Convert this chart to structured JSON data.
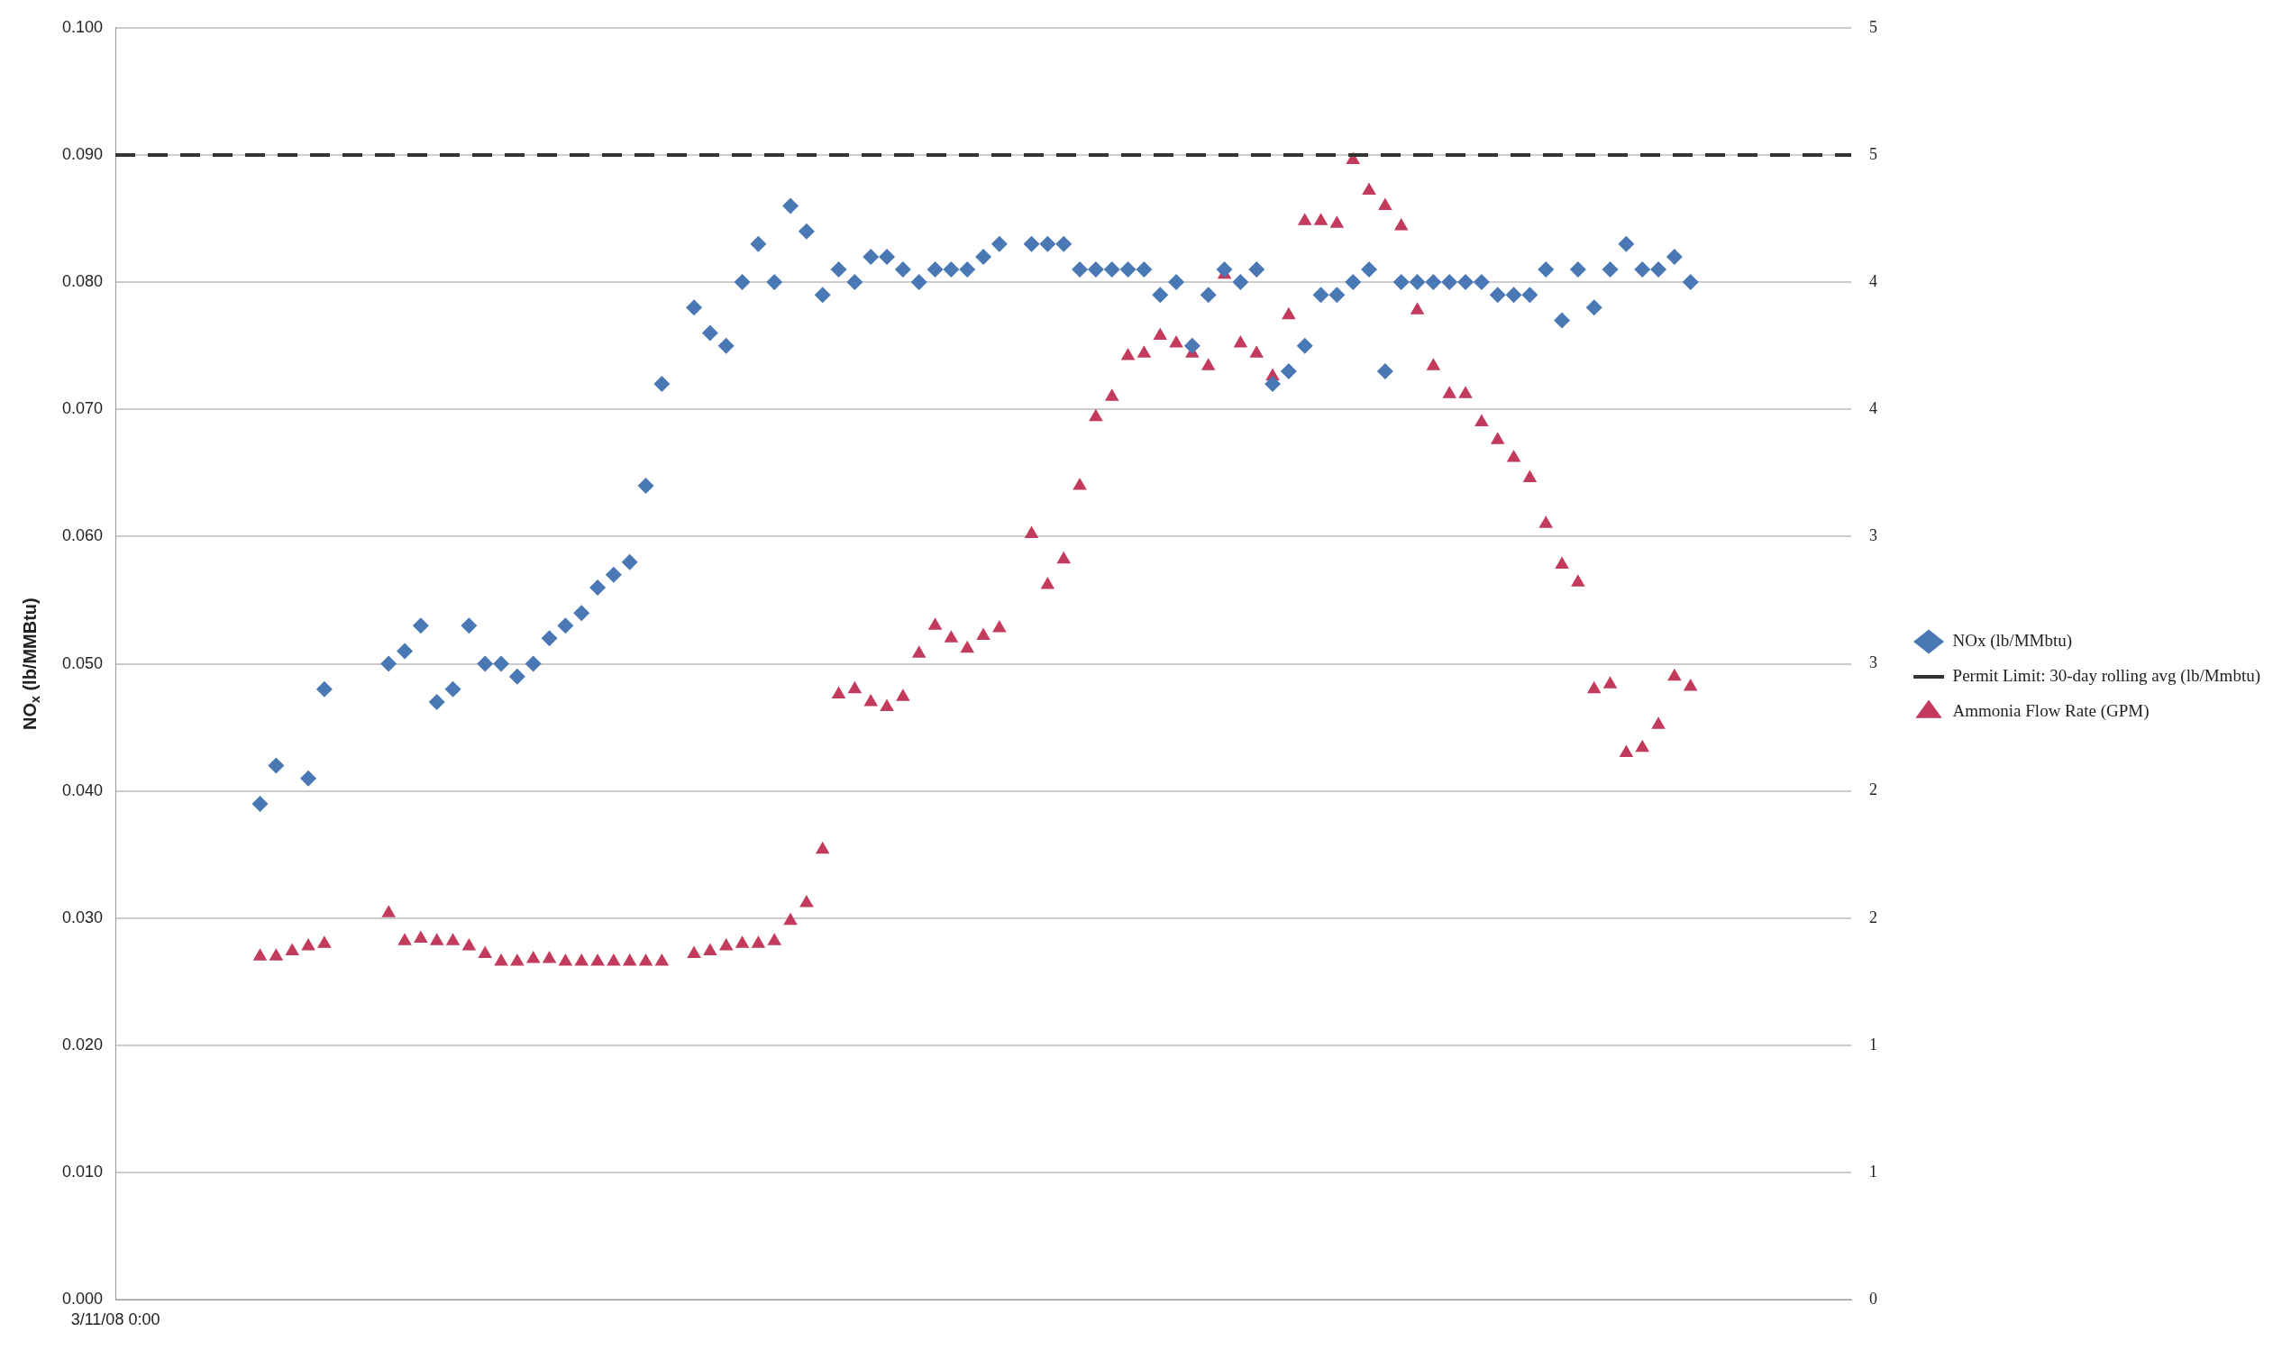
{
  "chart_data": {
    "type": "scatter",
    "ylabel": "NO$_{x}$ (lb/MMBtu)",
    "categories": [
      "3/11/08 0:00",
      null,
      null,
      null,
      null,
      null,
      null,
      null,
      null,
      null,
      null,
      null,
      null,
      null,
      null,
      null,
      null,
      null,
      null,
      null,
      null,
      null,
      null,
      null,
      null,
      null,
      null,
      null,
      null,
      null,
      null,
      null,
      null,
      null,
      null,
      null,
      null,
      null,
      null,
      null,
      null,
      null,
      null,
      null,
      null,
      null,
      null,
      null,
      null,
      null,
      null,
      null,
      null,
      null,
      null,
      null,
      null,
      null,
      null,
      null,
      null,
      null,
      null,
      null,
      null,
      null,
      null,
      null,
      null,
      null,
      null,
      null,
      null,
      null,
      null,
      null,
      null,
      null,
      null,
      null,
      null,
      null,
      null,
      null,
      null,
      null,
      null,
      null,
      null,
      null,
      null,
      null,
      null,
      null,
      null,
      null,
      null,
      null,
      null,
      null,
      null,
      null,
      null,
      null,
      null,
      null,
      null,
      null,
      null
    ],
    "series": [
      {
        "name": "NOx (lb/MMbtu)",
        "marker": "diamond",
        "color": "#4a78b4",
        "values": [
          null,
          null,
          null,
          null,
          null,
          null,
          null,
          null,
          null,
          0.039,
          0.042,
          null,
          0.041,
          0.048,
          null,
          null,
          null,
          0.05,
          0.051,
          0.053,
          0.047,
          0.048,
          0.053,
          0.05,
          0.05,
          0.049,
          0.05,
          0.052,
          0.053,
          0.054,
          0.056,
          0.057,
          0.058,
          0.064,
          0.072,
          null,
          0.078,
          0.076,
          0.075,
          0.08,
          0.083,
          0.08,
          0.086,
          0.084,
          0.079,
          0.081,
          0.08,
          0.082,
          0.082,
          0.081,
          0.08,
          0.081,
          0.081,
          0.081,
          0.082,
          0.083,
          null,
          0.083,
          0.083,
          0.083,
          0.081,
          0.081,
          0.081,
          0.081,
          0.081,
          0.079,
          0.08,
          0.075,
          0.079,
          0.081,
          0.08,
          0.081,
          0.072,
          0.073,
          0.075,
          0.079,
          0.079,
          0.08,
          0.081,
          0.073,
          0.08,
          0.08,
          0.08,
          0.08,
          0.08,
          0.08,
          0.079,
          0.079,
          0.079,
          0.081,
          0.077,
          0.081,
          0.078,
          0.081,
          0.083,
          0.081,
          0.081,
          0.082,
          0.08,
          null,
          null,
          null,
          null,
          null,
          null,
          null,
          null,
          null,
          null
        ]
      },
      {
        "name": "Permit Limit: 30-day rolling avg (lb/Mmbtu)",
        "type": "line",
        "marker": "none",
        "line_style": "dashed",
        "color": "#333333",
        "values": [
          0.09,
          0.09,
          0.09,
          0.09,
          0.09,
          0.09,
          0.09,
          0.09,
          0.09,
          0.09,
          0.09,
          0.09,
          0.09,
          0.09,
          0.09,
          0.09,
          0.09,
          0.09,
          0.09,
          0.09,
          0.09,
          0.09,
          0.09,
          0.09,
          0.09,
          0.09,
          0.09,
          0.09,
          0.09,
          0.09,
          0.09,
          0.09,
          0.09,
          0.09,
          0.09,
          0.09,
          0.09,
          0.09,
          0.09,
          0.09,
          0.09,
          0.09,
          0.09,
          0.09,
          0.09,
          0.09,
          0.09,
          0.09,
          0.09,
          0.09,
          0.09,
          0.09,
          0.09,
          0.09,
          0.09,
          0.09,
          0.09,
          0.09,
          0.09,
          0.09,
          0.09,
          0.09,
          0.09,
          0.09,
          0.09,
          0.09,
          0.09,
          0.09,
          0.09,
          0.09,
          0.09,
          0.09,
          0.09,
          0.09,
          0.09,
          0.09,
          0.09,
          0.09,
          0.09,
          0.09,
          0.09,
          0.09,
          0.09,
          0.09,
          0.09,
          0.09,
          0.09,
          0.09,
          0.09,
          0.09,
          0.09,
          0.09,
          0.09,
          0.09,
          0.09,
          0.09,
          0.09,
          0.09,
          0.09,
          0.09,
          0.09,
          0.09,
          0.09,
          0.09,
          0.09,
          0.09,
          0.09,
          0.09,
          0.09
        ]
      },
      {
        "name": "Ammonia Flow Rate (GPM)",
        "marker": "triangle",
        "axis": "y2",
        "color": "#c23a5c",
        "values": [
          null,
          null,
          null,
          null,
          null,
          null,
          null,
          null,
          null,
          1.35,
          1.35,
          1.37,
          1.39,
          1.4,
          null,
          null,
          null,
          1.52,
          1.41,
          1.42,
          1.41,
          1.41,
          1.39,
          1.36,
          1.33,
          1.33,
          1.34,
          1.34,
          1.33,
          1.33,
          1.33,
          1.33,
          1.33,
          1.33,
          1.33,
          null,
          1.36,
          1.37,
          1.39,
          1.4,
          1.4,
          1.41,
          1.49,
          1.56,
          1.77,
          2.38,
          2.4,
          2.35,
          2.33,
          2.37,
          2.54,
          2.65,
          2.6,
          2.56,
          2.61,
          2.64,
          null,
          3.01,
          2.81,
          2.91,
          3.2,
          3.47,
          3.55,
          3.71,
          3.72,
          3.79,
          3.76,
          3.72,
          3.67,
          4.03,
          3.76,
          3.72,
          3.63,
          3.87,
          4.24,
          4.24,
          4.23,
          4.48,
          4.36,
          4.3,
          4.22,
          3.89,
          3.67,
          3.56,
          3.56,
          3.45,
          3.38,
          3.31,
          3.23,
          3.05,
          2.89,
          2.82,
          2.4,
          2.42,
          2.15,
          2.17,
          2.26,
          2.45,
          2.41,
          null,
          null,
          null,
          null,
          null,
          null,
          null,
          null,
          null,
          null
        ]
      }
    ],
    "ylim": [
      0,
      0.1
    ],
    "yticks": [
      {
        "value": 0,
        "label": "0.000"
      },
      {
        "value": 0.01,
        "label": "0.010"
      },
      {
        "value": 0.02,
        "label": "0.020"
      },
      {
        "value": 0.03,
        "label": "0.030"
      },
      {
        "value": 0.04,
        "label": "0.040"
      },
      {
        "value": 0.05,
        "label": "0.050"
      },
      {
        "value": 0.06,
        "label": "0.060"
      },
      {
        "value": 0.07,
        "label": "0.070"
      },
      {
        "value": 0.08,
        "label": "0.080"
      },
      {
        "value": 0.09,
        "label": "0.090"
      },
      {
        "value": 0.1,
        "label": "0.100"
      }
    ],
    "y2lim": [
      0,
      5
    ],
    "y2ticks": [
      0,
      {
        "value": 0.5,
        "label": "1"
      },
      1,
      {
        "value": 1.5,
        "label": "2"
      },
      2,
      {
        "value": 2.5,
        "label": "3"
      },
      3,
      {
        "value": 3.5,
        "label": "4"
      },
      4,
      {
        "value": 4.5,
        "label": "5"
      },
      5
    ],
    "grid": "y",
    "legend": "right"
  }
}
